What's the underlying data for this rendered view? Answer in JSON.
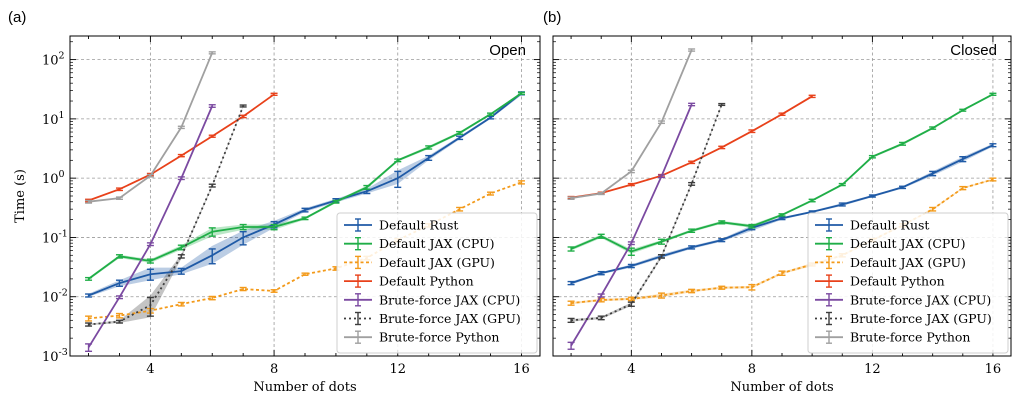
{
  "figure": {
    "panel_letters": [
      "(a)",
      "(b)"
    ],
    "shared_ylabel": "Time (s)"
  },
  "chart_data": [
    {
      "type": "line",
      "title": "Open",
      "xlabel": "Number of dots",
      "ylabel": "Time (s)",
      "yscale": "log",
      "xlim": [
        1.4,
        16.6
      ],
      "ylim": [
        0.001,
        250
      ],
      "xticks": [
        4,
        8,
        12,
        16
      ],
      "yticks": [
        0.001,
        0.01,
        0.1,
        1,
        10,
        100
      ],
      "ytick_labels": [
        [
          "10",
          "-3"
        ],
        [
          "10",
          "-2"
        ],
        [
          "10",
          "-1"
        ],
        [
          "10",
          "0"
        ],
        [
          "10",
          "1"
        ],
        [
          "10",
          "2"
        ]
      ],
      "grid": true,
      "legend_position": "bottom-right",
      "series": [
        {
          "name": "Default Rust",
          "color": "#1f5aa6",
          "dash": "solid",
          "x": [
            2,
            3,
            4,
            5,
            6,
            7,
            8,
            9,
            10,
            11,
            12,
            13,
            14,
            15,
            16
          ],
          "y": [
            0.0105,
            0.017,
            0.024,
            0.027,
            0.05,
            0.1,
            0.165,
            0.29,
            0.42,
            0.6,
            1.0,
            2.2,
            4.8,
            10.5,
            27
          ],
          "band": [
            [
              0.01,
              0.0112
            ],
            [
              0.015,
              0.019
            ],
            [
              0.019,
              0.031
            ],
            [
              0.024,
              0.031
            ],
            [
              0.036,
              0.072
            ],
            [
              0.075,
              0.13
            ],
            [
              0.145,
              0.19
            ],
            [
              0.27,
              0.31
            ],
            [
              0.39,
              0.45
            ],
            [
              0.55,
              0.66
            ],
            [
              0.8,
              1.35
            ],
            [
              2.0,
              2.4
            ],
            [
              4.5,
              5.1
            ],
            [
              10,
              11
            ],
            [
              25,
              29
            ]
          ],
          "errors": [
            0.0006,
            0.002,
            0.005,
            0.003,
            0.014,
            0.025,
            0.02,
            0.02,
            0.03,
            0.05,
            0.3,
            0.2,
            0.3,
            0.5,
            1.5
          ]
        },
        {
          "name": "Default JAX (CPU)",
          "color": "#1fae47",
          "dash": "solid",
          "x": [
            2,
            3,
            4,
            5,
            6,
            7,
            8,
            9,
            10,
            11,
            12,
            13,
            14,
            15,
            16
          ],
          "y": [
            0.02,
            0.048,
            0.04,
            0.068,
            0.125,
            0.15,
            0.15,
            0.21,
            0.4,
            0.7,
            2.0,
            3.3,
            5.8,
            12,
            27
          ],
          "band": [
            [
              0.019,
              0.021
            ],
            [
              0.045,
              0.051
            ],
            [
              0.037,
              0.043
            ],
            [
              0.062,
              0.074
            ],
            [
              0.105,
              0.145
            ],
            [
              0.135,
              0.165
            ],
            [
              0.135,
              0.165
            ],
            [
              0.2,
              0.22
            ],
            [
              0.38,
              0.42
            ],
            [
              0.65,
              0.75
            ],
            [
              1.9,
              2.1
            ],
            [
              3.1,
              3.5
            ],
            [
              5.5,
              6.1
            ],
            [
              11.5,
              12.5
            ],
            [
              26,
              28
            ]
          ],
          "errors": [
            0.001,
            0.003,
            0.003,
            0.006,
            0.02,
            0.015,
            0.015,
            0.01,
            0.02,
            0.05,
            0.1,
            0.2,
            0.3,
            0.5,
            1
          ]
        },
        {
          "name": "Default JAX (GPU)",
          "color": "#f39a1a",
          "dash": "3,2.5",
          "x": [
            2,
            3,
            4,
            5,
            6,
            7,
            8,
            9,
            10,
            11,
            12,
            13,
            14,
            15,
            16
          ],
          "y": [
            0.0043,
            0.0048,
            0.0058,
            0.0075,
            0.0095,
            0.0135,
            0.0125,
            0.024,
            0.03,
            0.045,
            0.09,
            0.16,
            0.3,
            0.55,
            0.85
          ],
          "band": null,
          "errors": [
            0.0004,
            0.0004,
            0.0005,
            0.0005,
            0.0006,
            0.0008,
            0.0006,
            0.001,
            0.002,
            0.003,
            0.005,
            0.01,
            0.02,
            0.03,
            0.05
          ]
        },
        {
          "name": "Default Python",
          "color": "#e8411a",
          "dash": "solid",
          "x": [
            2,
            3,
            4,
            5,
            6,
            7,
            8
          ],
          "y": [
            0.42,
            0.65,
            1.15,
            2.4,
            5.1,
            11,
            26
          ],
          "band": null,
          "errors": [
            0.02,
            0.03,
            0.05,
            0.1,
            0.2,
            0.5,
            1
          ]
        },
        {
          "name": "Brute-force JAX (CPU)",
          "color": "#7b4aa1",
          "dash": "solid",
          "x": [
            2,
            3,
            4,
            5,
            6
          ],
          "y": [
            0.0014,
            0.0098,
            0.077,
            1.0,
            16.5
          ],
          "band": null,
          "errors": [
            0.0002,
            0.0005,
            0.004,
            0.05,
            0.8
          ]
        },
        {
          "name": "Brute-force JAX (GPU)",
          "color": "#3d3d3d",
          "dash": "2,3",
          "x": [
            2,
            3,
            4,
            5,
            6,
            7
          ],
          "y": [
            0.0034,
            0.0038,
            0.0072,
            0.048,
            0.75,
            16.5
          ],
          "band": [
            [
              0.0033,
              0.0035
            ],
            [
              0.0036,
              0.004
            ],
            [
              0.0045,
              0.0105
            ],
            [
              0.044,
              0.052
            ],
            [
              0.72,
              0.78
            ],
            [
              16,
              17
            ]
          ],
          "errors": [
            0.0002,
            0.0002,
            0.0025,
            0.003,
            0.04,
            0.6
          ]
        },
        {
          "name": "Brute-force Python",
          "color": "#a0a0a0",
          "dash": "solid",
          "x": [
            2,
            3,
            4,
            5,
            6
          ],
          "y": [
            0.4,
            0.46,
            1.1,
            7.2,
            130
          ],
          "band": null,
          "errors": [
            0.02,
            0.02,
            0.05,
            0.3,
            5
          ]
        }
      ]
    },
    {
      "type": "line",
      "title": "Closed",
      "xlabel": "Number of dots",
      "ylabel": "",
      "yscale": "log",
      "xlim": [
        1.4,
        16.6
      ],
      "ylim": [
        0.001,
        250
      ],
      "xticks": [
        4,
        8,
        12,
        16
      ],
      "yticks": [
        0.001,
        0.01,
        0.1,
        1,
        10,
        100
      ],
      "ytick_labels": [],
      "grid": true,
      "legend_position": "bottom-right",
      "series": [
        {
          "name": "Default Rust",
          "color": "#1f5aa6",
          "dash": "solid",
          "x": [
            2,
            3,
            4,
            5,
            6,
            7,
            8,
            9,
            10,
            11,
            12,
            13,
            14,
            15,
            16
          ],
          "y": [
            0.017,
            0.025,
            0.033,
            0.048,
            0.068,
            0.09,
            0.145,
            0.21,
            0.27,
            0.36,
            0.5,
            0.7,
            1.2,
            2.1,
            3.6
          ],
          "band": [
            [
              0.016,
              0.018
            ],
            [
              0.024,
              0.026
            ],
            [
              0.031,
              0.035
            ],
            [
              0.045,
              0.052
            ],
            [
              0.064,
              0.072
            ],
            [
              0.085,
              0.095
            ],
            [
              0.13,
              0.16
            ],
            [
              0.2,
              0.22
            ],
            [
              0.26,
              0.28
            ],
            [
              0.34,
              0.38
            ],
            [
              0.48,
              0.52
            ],
            [
              0.67,
              0.73
            ],
            [
              1.1,
              1.3
            ],
            [
              1.9,
              2.3
            ],
            [
              3.4,
              3.8
            ]
          ],
          "errors": [
            0.001,
            0.0015,
            0.002,
            0.003,
            0.004,
            0.005,
            0.01,
            0.01,
            0.01,
            0.02,
            0.02,
            0.03,
            0.1,
            0.2,
            0.2
          ]
        },
        {
          "name": "Default JAX (CPU)",
          "color": "#1fae47",
          "dash": "solid",
          "x": [
            2,
            3,
            4,
            5,
            6,
            7,
            8,
            9,
            10,
            11,
            12,
            13,
            14,
            15,
            16
          ],
          "y": [
            0.064,
            0.105,
            0.058,
            0.085,
            0.13,
            0.18,
            0.155,
            0.24,
            0.42,
            0.78,
            2.3,
            3.8,
            7,
            14,
            26
          ],
          "band": [
            [
              0.06,
              0.068
            ],
            [
              0.098,
              0.112
            ],
            [
              0.053,
              0.063
            ],
            [
              0.08,
              0.09
            ],
            [
              0.123,
              0.137
            ],
            [
              0.17,
              0.19
            ],
            [
              0.145,
              0.165
            ],
            [
              0.23,
              0.25
            ],
            [
              0.4,
              0.44
            ],
            [
              0.75,
              0.81
            ],
            [
              2.2,
              2.4
            ],
            [
              3.6,
              4.0
            ],
            [
              6.7,
              7.3
            ],
            [
              13.5,
              14.5
            ],
            [
              25,
              27
            ]
          ],
          "errors": [
            0.005,
            0.008,
            0.008,
            0.008,
            0.008,
            0.01,
            0.01,
            0.01,
            0.02,
            0.03,
            0.1,
            0.2,
            0.3,
            0.5,
            1
          ]
        },
        {
          "name": "Default JAX (GPU)",
          "color": "#f39a1a",
          "dash": "3,2.5",
          "x": [
            2,
            3,
            4,
            5,
            6,
            7,
            8,
            9,
            10,
            11,
            12,
            13,
            14,
            15,
            16
          ],
          "y": [
            0.0078,
            0.0088,
            0.0092,
            0.0105,
            0.0125,
            0.0142,
            0.0145,
            0.025,
            0.035,
            0.05,
            0.09,
            0.16,
            0.3,
            0.68,
            0.95
          ],
          "band": [
            [
              0.0075,
              0.0081
            ],
            [
              0.0084,
              0.0092
            ],
            [
              0.0088,
              0.0096
            ],
            [
              0.0098,
              0.0112
            ],
            [
              0.0119,
              0.0131
            ],
            [
              0.0136,
              0.0148
            ],
            [
              0.0138,
              0.0152
            ],
            [
              0.024,
              0.026
            ],
            [
              0.033,
              0.037
            ],
            [
              0.048,
              0.052
            ],
            [
              0.086,
              0.094
            ],
            [
              0.155,
              0.165
            ],
            [
              0.29,
              0.31
            ],
            [
              0.66,
              0.7
            ],
            [
              0.92,
              0.98
            ]
          ],
          "errors": [
            0.0006,
            0.0006,
            0.0006,
            0.001,
            0.0008,
            0.0008,
            0.0015,
            0.002,
            0.002,
            0.003,
            0.005,
            0.01,
            0.02,
            0.04,
            0.05
          ]
        },
        {
          "name": "Default Python",
          "color": "#e8411a",
          "dash": "solid",
          "x": [
            2,
            3,
            4,
            5,
            6,
            7,
            8,
            9,
            10
          ],
          "y": [
            0.47,
            0.56,
            0.78,
            1.1,
            1.85,
            3.3,
            6.2,
            12,
            24
          ],
          "band": null,
          "errors": [
            0.02,
            0.02,
            0.03,
            0.05,
            0.08,
            0.15,
            0.3,
            0.5,
            1
          ]
        },
        {
          "name": "Brute-force JAX (CPU)",
          "color": "#7b4aa1",
          "dash": "solid",
          "x": [
            2,
            3,
            4,
            5,
            6
          ],
          "y": [
            0.0015,
            0.0105,
            0.08,
            1.08,
            17.5
          ],
          "band": null,
          "errors": [
            0.0002,
            0.0006,
            0.004,
            0.05,
            0.8
          ]
        },
        {
          "name": "Brute-force JAX (GPU)",
          "color": "#3d3d3d",
          "dash": "2,3",
          "x": [
            2,
            3,
            4,
            5,
            6,
            7
          ],
          "y": [
            0.004,
            0.0044,
            0.0075,
            0.048,
            0.8,
            17.5
          ],
          "band": [
            [
              0.0038,
              0.0042
            ],
            [
              0.0042,
              0.0046
            ],
            [
              0.007,
              0.008
            ],
            [
              0.045,
              0.051
            ],
            [
              0.76,
              0.84
            ],
            [
              16.8,
              18.2
            ]
          ],
          "errors": [
            0.0003,
            0.0003,
            0.0006,
            0.003,
            0.04,
            0.6
          ]
        },
        {
          "name": "Brute-force Python",
          "color": "#a0a0a0",
          "dash": "solid",
          "x": [
            2,
            3,
            4,
            5,
            6
          ],
          "y": [
            0.46,
            0.55,
            1.3,
            8.8,
            145
          ],
          "band": null,
          "errors": [
            0.02,
            0.02,
            0.06,
            0.4,
            6
          ]
        }
      ]
    }
  ]
}
